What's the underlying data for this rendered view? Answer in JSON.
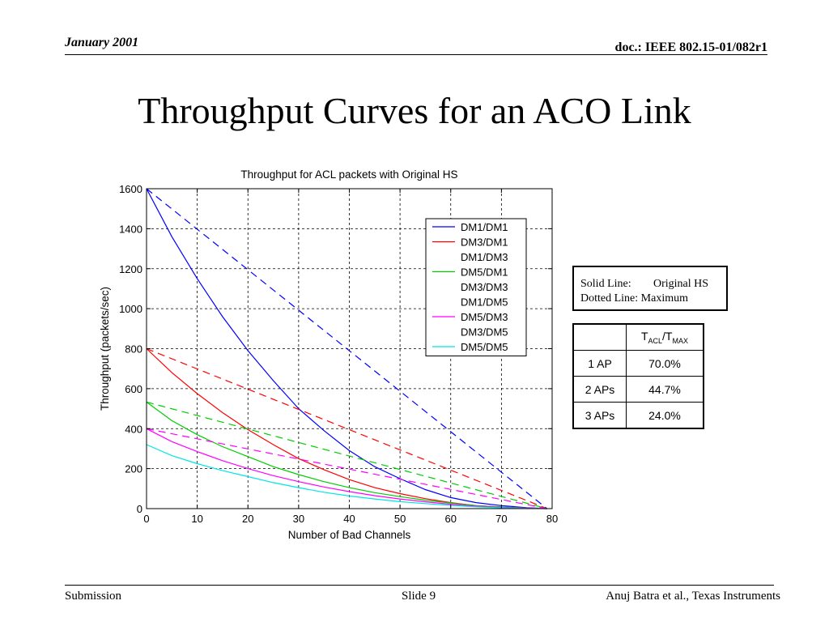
{
  "slide": {
    "date": "January 2001",
    "doc": "doc.: IEEE 802.15-01/082r1",
    "title": "Throughput Curves for an ACO Link",
    "footer_left": "Submission",
    "footer_center": "Slide 9",
    "footer_right": "Anuj Batra et al., Texas Instruments"
  },
  "line_style_key": {
    "solid_label": "Solid Line:",
    "solid_value": "Original HS",
    "dotted_label": "Dotted Line:",
    "dotted_value": "Maximum"
  },
  "ratio_table": {
    "header_main1": "T",
    "header_sub1": "ACL",
    "header_slash": "/T",
    "header_sub2": "MAX",
    "rows": [
      {
        "label": "1 AP",
        "value": "70.0%"
      },
      {
        "label": "2 APs",
        "value": "44.7%"
      },
      {
        "label": "3 APs",
        "value": "24.0%"
      }
    ]
  },
  "chart_data": {
    "type": "line",
    "title": "Throughput for ACL packets with Original HS",
    "xlabel": "Number of Bad Channels",
    "ylabel": "Throughput (packets/sec)",
    "xlim": [
      0,
      80
    ],
    "ylim": [
      0,
      1600
    ],
    "xticks": [
      0,
      10,
      20,
      30,
      40,
      50,
      60,
      70,
      80
    ],
    "yticks": [
      0,
      200,
      400,
      600,
      800,
      1000,
      1200,
      1400,
      1600
    ],
    "grid": true,
    "legend_position": "top-right",
    "legend": [
      {
        "label": "DM1/DM1",
        "color": "#0000ff",
        "swatch": true
      },
      {
        "label": "DM3/DM1",
        "color": "#ff0000",
        "swatch": true
      },
      {
        "label": "DM1/DM3",
        "color": "#ff0000",
        "swatch": false
      },
      {
        "label": "DM5/DM1",
        "color": "#00cc00",
        "swatch": true
      },
      {
        "label": "DM3/DM3",
        "color": "#00cc00",
        "swatch": false
      },
      {
        "label": "DM1/DM5",
        "color": "#00cc00",
        "swatch": false
      },
      {
        "label": "DM5/DM3",
        "color": "#ff00ff",
        "swatch": true
      },
      {
        "label": "DM3/DM5",
        "color": "#ff00ff",
        "swatch": false
      },
      {
        "label": "DM5/DM5",
        "color": "#00e5e5",
        "swatch": true
      }
    ],
    "series": [
      {
        "name": "DM1/DM1",
        "style": "solid",
        "color": "#0000ff",
        "x": [
          0,
          5,
          10,
          15,
          20,
          25,
          30,
          35,
          40,
          45,
          50,
          55,
          60,
          65,
          70,
          75,
          79
        ],
        "y": [
          1600,
          1360,
          1150,
          960,
          790,
          640,
          500,
          390,
          290,
          210,
          150,
          95,
          55,
          30,
          15,
          5,
          0
        ]
      },
      {
        "name": "DM1/DM1",
        "style": "dashed",
        "color": "#0000ff",
        "x": [
          0,
          79
        ],
        "y": [
          1600,
          0
        ]
      },
      {
        "name": "DM3/DM1",
        "style": "solid",
        "color": "#ff0000",
        "x": [
          0,
          5,
          10,
          15,
          20,
          25,
          30,
          35,
          40,
          45,
          50,
          55,
          60,
          65,
          70,
          75,
          79
        ],
        "y": [
          800,
          680,
          575,
          480,
          395,
          320,
          250,
          195,
          145,
          105,
          75,
          50,
          30,
          15,
          8,
          3,
          0
        ]
      },
      {
        "name": "DM3/DM1",
        "style": "dashed",
        "color": "#ff0000",
        "x": [
          0,
          79
        ],
        "y": [
          800,
          0
        ]
      },
      {
        "name": "DM5/DM1",
        "style": "solid",
        "color": "#00cc00",
        "x": [
          0,
          5,
          10,
          15,
          20,
          25,
          30,
          35,
          40,
          45,
          50,
          55,
          60,
          65,
          70,
          75,
          79
        ],
        "y": [
          533,
          440,
          370,
          310,
          260,
          210,
          170,
          135,
          105,
          80,
          60,
          42,
          28,
          15,
          8,
          3,
          0
        ]
      },
      {
        "name": "DM5/DM1",
        "style": "dashed",
        "color": "#00cc00",
        "x": [
          0,
          79
        ],
        "y": [
          533,
          0
        ]
      },
      {
        "name": "DM5/DM3",
        "style": "solid",
        "color": "#ff00ff",
        "x": [
          0,
          5,
          10,
          15,
          20,
          25,
          30,
          35,
          40,
          45,
          50,
          55,
          60,
          65,
          70,
          75,
          79
        ],
        "y": [
          400,
          335,
          285,
          240,
          200,
          165,
          135,
          108,
          85,
          65,
          48,
          34,
          22,
          12,
          6,
          2,
          0
        ]
      },
      {
        "name": "DM5/DM3",
        "style": "dashed",
        "color": "#ff00ff",
        "x": [
          0,
          79
        ],
        "y": [
          400,
          0
        ]
      },
      {
        "name": "DM5/DM5",
        "style": "solid",
        "color": "#00e5e5",
        "x": [
          0,
          5,
          10,
          15,
          20,
          25,
          30,
          35,
          40,
          45,
          50,
          55,
          60,
          65,
          70,
          75,
          79
        ],
        "y": [
          320,
          265,
          225,
          190,
          160,
          130,
          105,
          82,
          63,
          48,
          35,
          25,
          16,
          9,
          4,
          1,
          0
        ]
      }
    ]
  }
}
